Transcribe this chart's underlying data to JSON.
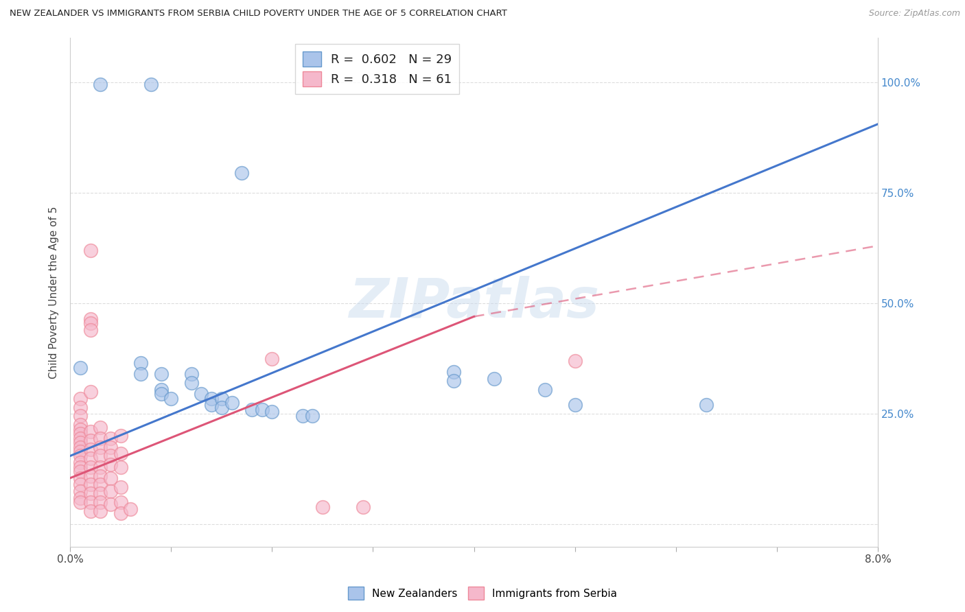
{
  "title": "NEW ZEALANDER VS IMMIGRANTS FROM SERBIA CHILD POVERTY UNDER THE AGE OF 5 CORRELATION CHART",
  "source": "Source: ZipAtlas.com",
  "ylabel": "Child Poverty Under the Age of 5",
  "ytick_values": [
    0.0,
    0.25,
    0.5,
    0.75,
    1.0
  ],
  "ytick_labels": [
    "",
    "25.0%",
    "50.0%",
    "75.0%",
    "100.0%"
  ],
  "xlim": [
    0.0,
    0.08
  ],
  "ylim": [
    -0.05,
    1.1
  ],
  "watermark": "ZIPatlas",
  "nz_color": "#aac4ea",
  "serbia_color": "#f5b8cb",
  "nz_edge_color": "#6699cc",
  "serbia_edge_color": "#ee8899",
  "nz_line_color": "#4477cc",
  "serbia_line_color": "#dd5577",
  "right_axis_color": "#4488cc",
  "nz_R": 0.602,
  "serbia_R": 0.318,
  "nz_N": 29,
  "serbia_N": 61,
  "nz_trend": [
    0.0,
    0.08,
    0.155,
    0.905
  ],
  "serbia_trend_solid": [
    0.0,
    0.04,
    0.105,
    0.47
  ],
  "serbia_trend_dashed": [
    0.04,
    0.08,
    0.47,
    0.63
  ],
  "nz_scatter": [
    [
      0.003,
      0.995
    ],
    [
      0.008,
      0.995
    ],
    [
      0.017,
      0.795
    ],
    [
      0.001,
      0.355
    ],
    [
      0.007,
      0.365
    ],
    [
      0.007,
      0.34
    ],
    [
      0.009,
      0.34
    ],
    [
      0.009,
      0.305
    ],
    [
      0.009,
      0.295
    ],
    [
      0.01,
      0.285
    ],
    [
      0.012,
      0.34
    ],
    [
      0.012,
      0.32
    ],
    [
      0.013,
      0.295
    ],
    [
      0.014,
      0.285
    ],
    [
      0.014,
      0.27
    ],
    [
      0.015,
      0.285
    ],
    [
      0.015,
      0.265
    ],
    [
      0.016,
      0.275
    ],
    [
      0.018,
      0.26
    ],
    [
      0.019,
      0.26
    ],
    [
      0.02,
      0.255
    ],
    [
      0.023,
      0.245
    ],
    [
      0.024,
      0.245
    ],
    [
      0.038,
      0.345
    ],
    [
      0.038,
      0.325
    ],
    [
      0.042,
      0.33
    ],
    [
      0.047,
      0.305
    ],
    [
      0.05,
      0.27
    ],
    [
      0.063,
      0.27
    ]
  ],
  "serbia_scatter": [
    [
      0.001,
      0.285
    ],
    [
      0.001,
      0.265
    ],
    [
      0.001,
      0.245
    ],
    [
      0.001,
      0.225
    ],
    [
      0.001,
      0.215
    ],
    [
      0.001,
      0.205
    ],
    [
      0.001,
      0.195
    ],
    [
      0.001,
      0.185
    ],
    [
      0.001,
      0.175
    ],
    [
      0.001,
      0.165
    ],
    [
      0.001,
      0.155
    ],
    [
      0.001,
      0.14
    ],
    [
      0.001,
      0.13
    ],
    [
      0.001,
      0.12
    ],
    [
      0.001,
      0.105
    ],
    [
      0.001,
      0.09
    ],
    [
      0.001,
      0.075
    ],
    [
      0.001,
      0.06
    ],
    [
      0.001,
      0.05
    ],
    [
      0.002,
      0.62
    ],
    [
      0.002,
      0.465
    ],
    [
      0.002,
      0.455
    ],
    [
      0.002,
      0.44
    ],
    [
      0.002,
      0.3
    ],
    [
      0.002,
      0.21
    ],
    [
      0.002,
      0.19
    ],
    [
      0.002,
      0.17
    ],
    [
      0.002,
      0.15
    ],
    [
      0.002,
      0.13
    ],
    [
      0.002,
      0.11
    ],
    [
      0.002,
      0.09
    ],
    [
      0.002,
      0.07
    ],
    [
      0.002,
      0.05
    ],
    [
      0.002,
      0.03
    ],
    [
      0.003,
      0.22
    ],
    [
      0.003,
      0.195
    ],
    [
      0.003,
      0.175
    ],
    [
      0.003,
      0.155
    ],
    [
      0.003,
      0.13
    ],
    [
      0.003,
      0.11
    ],
    [
      0.003,
      0.09
    ],
    [
      0.003,
      0.07
    ],
    [
      0.003,
      0.05
    ],
    [
      0.003,
      0.03
    ],
    [
      0.004,
      0.195
    ],
    [
      0.004,
      0.175
    ],
    [
      0.004,
      0.155
    ],
    [
      0.004,
      0.135
    ],
    [
      0.004,
      0.105
    ],
    [
      0.004,
      0.075
    ],
    [
      0.004,
      0.045
    ],
    [
      0.005,
      0.2
    ],
    [
      0.005,
      0.16
    ],
    [
      0.005,
      0.13
    ],
    [
      0.005,
      0.085
    ],
    [
      0.005,
      0.05
    ],
    [
      0.005,
      0.025
    ],
    [
      0.006,
      0.035
    ],
    [
      0.02,
      0.375
    ],
    [
      0.025,
      0.04
    ],
    [
      0.029,
      0.04
    ],
    [
      0.05,
      0.37
    ]
  ]
}
